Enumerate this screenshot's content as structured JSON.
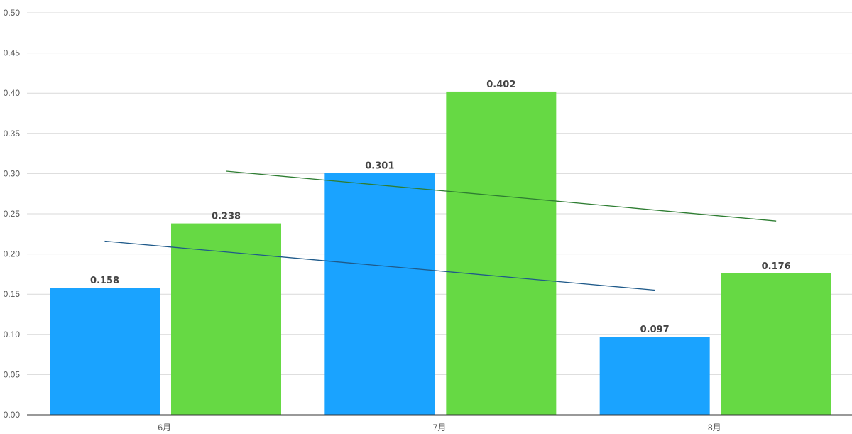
{
  "chart_data": {
    "type": "bar",
    "title": "",
    "xlabel": "",
    "ylabel": "",
    "categories": [
      "6月",
      "7月",
      "8月"
    ],
    "ylim": [
      0,
      0.5
    ],
    "yticks": [
      0,
      0.05,
      0.1,
      0.15,
      0.2,
      0.25,
      0.3,
      0.35,
      0.4,
      0.45,
      0.5
    ],
    "ytick_labels": [
      "0.00",
      "0.05",
      "0.10",
      "0.15",
      "0.20",
      "0.25",
      "0.30",
      "0.35",
      "0.40",
      "0.45",
      "0.50"
    ],
    "grid": true,
    "legend": "none",
    "series": [
      {
        "values": [
          0.158,
          0.301,
          0.097
        ],
        "labels": [
          "0.158",
          "0.301",
          "0.097"
        ],
        "color": "#1aa3ff"
      },
      {
        "values": [
          0.238,
          0.402,
          0.176
        ],
        "labels": [
          "0.238",
          "0.402",
          "0.176"
        ],
        "color": "#66d944"
      }
    ],
    "trendlines": [
      {
        "series_index": 0,
        "start": 0.216,
        "end": 0.155,
        "color": "#1f5a8a"
      },
      {
        "series_index": 1,
        "start": 0.303,
        "end": 0.241,
        "color": "#2e7d32"
      }
    ]
  }
}
